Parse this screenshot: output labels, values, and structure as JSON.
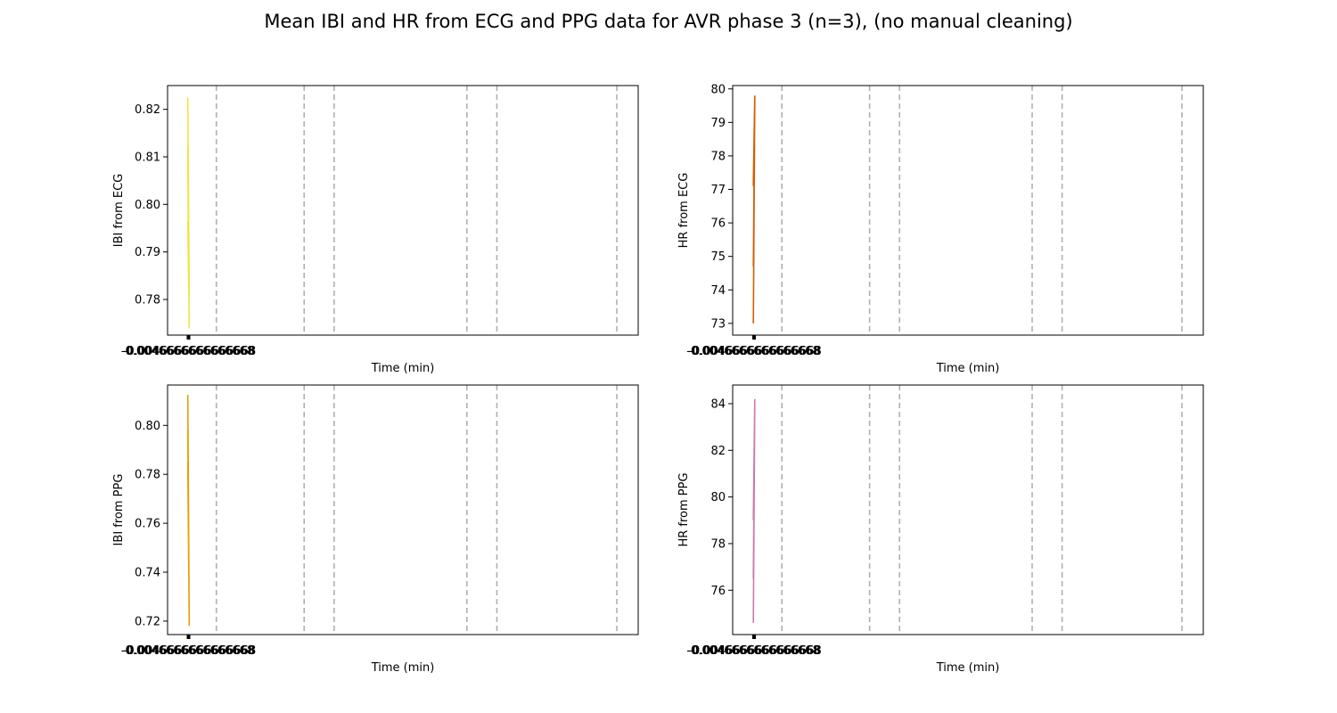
{
  "title": "Mean IBI and HR from ECG and PPG data for AVR phase 3 (n=3), (no manual cleaning)",
  "chart_data": [
    {
      "type": "line",
      "panel": "top-left",
      "xlabel": "Time (min)",
      "ylabel": "IBI from ECG",
      "color": "#f0e442",
      "ylim": [
        0.7725,
        0.825
      ],
      "yticks": [
        0.78,
        0.79,
        0.8,
        0.81,
        0.82
      ],
      "ytick_labels": [
        "0.78",
        "0.79",
        "0.80",
        "0.81",
        "0.82"
      ],
      "xtick_labels_overlapped": "-0.0046666666666668",
      "phase_markers_relative": [
        0.065,
        0.27,
        0.34,
        0.65,
        0.72,
        1.0
      ],
      "series": [
        {
          "values": [
            0.8225,
            0.781,
            0.812,
            0.774,
            0.8085,
            0.775,
            0.7965
          ]
        }
      ]
    },
    {
      "type": "line",
      "panel": "top-right",
      "xlabel": "Time (min)",
      "ylabel": "HR from ECG",
      "color": "#d55e00",
      "ylim": [
        72.65,
        80.1
      ],
      "yticks": [
        73,
        74,
        75,
        76,
        77,
        78,
        79,
        80
      ],
      "ytick_labels": [
        "73",
        "74",
        "75",
        "76",
        "77",
        "78",
        "79",
        "80"
      ],
      "xtick_labels_overlapped": "-0.0046666666666668",
      "phase_markers_relative": [
        0.065,
        0.27,
        0.34,
        0.65,
        0.72,
        1.0
      ],
      "series": [
        {
          "values": [
            73.0,
            79.7,
            74.7,
            79.8,
            77.2,
            79.6,
            77.1
          ]
        }
      ]
    },
    {
      "type": "line",
      "panel": "bottom-left",
      "xlabel": "Time (min)",
      "ylabel": "IBI from PPG",
      "color": "#e69f00",
      "ylim": [
        0.7145,
        0.8165
      ],
      "yticks": [
        0.72,
        0.74,
        0.76,
        0.78,
        0.8
      ],
      "ytick_labels": [
        "0.72",
        "0.74",
        "0.76",
        "0.78",
        "0.80"
      ],
      "xtick_labels_overlapped": "-0.0046666666666668",
      "phase_markers_relative": [
        0.065,
        0.27,
        0.34,
        0.65,
        0.72,
        1.0
      ],
      "series": [
        {
          "values": [
            0.8125,
            0.718,
            0.798,
            0.719,
            0.785,
            0.72
          ]
        }
      ]
    },
    {
      "type": "line",
      "panel": "bottom-right",
      "xlabel": "Time (min)",
      "ylabel": "HR from PPG",
      "color": "#cc79a7",
      "ylim": [
        74.1,
        84.8
      ],
      "yticks": [
        76,
        78,
        80,
        82,
        84
      ],
      "ytick_labels": [
        "76",
        "78",
        "80",
        "82",
        "84"
      ],
      "xtick_labels_overlapped": "-0.0046666666666668",
      "phase_markers_relative": [
        0.065,
        0.27,
        0.34,
        0.65,
        0.72,
        1.0
      ],
      "series": [
        {
          "values": [
            74.6,
            84.2,
            76.5,
            84.2,
            79.0,
            83.8
          ]
        }
      ]
    }
  ]
}
